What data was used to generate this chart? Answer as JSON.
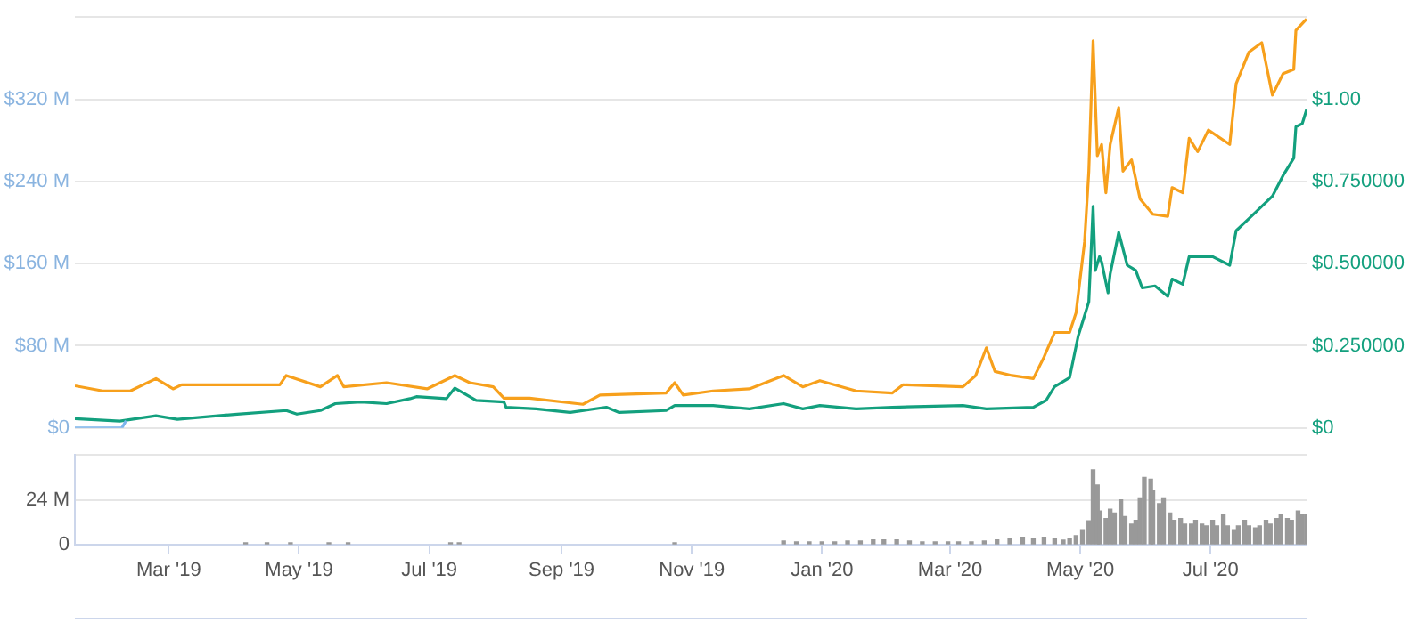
{
  "chart_data": [
    {
      "type": "line",
      "xlim": [
        "2019-01-16",
        "2020-08-15"
      ],
      "ylim": [
        0,
        400
      ],
      "yticks": [
        {
          "value": 0,
          "label": "$0"
        },
        {
          "value": 80,
          "label": "$80 M"
        },
        {
          "value": 160,
          "label": "$160 M"
        },
        {
          "value": 240,
          "label": "$240 M"
        },
        {
          "value": 320,
          "label": "$320 M"
        },
        {
          "value": 400,
          "label": null
        }
      ],
      "y2lim": [
        0,
        1.25
      ],
      "y2ticks": [
        {
          "value": 0,
          "label": "$0"
        },
        {
          "value": 0.25,
          "label": "$0.250000"
        },
        {
          "value": 0.5,
          "label": "$0.500000"
        },
        {
          "value": 0.75,
          "label": "$0.750000"
        },
        {
          "value": 1,
          "label": "$1.00"
        },
        {
          "value": 1.25,
          "label": null
        }
      ],
      "tick_labels": "y",
      "grid": "y",
      "marker": "none",
      "line_style": "solid",
      "series": [
        {
          "color": "#7cb5ec",
          "x": [
            "2019-01-16",
            "2019-02-07",
            "2019-02-09"
          ],
          "values": [
            0,
            0,
            7
          ]
        },
        {
          "color": "#f7a01c",
          "x": [
            "2019-01-16",
            "2019-01-29",
            "2019-02-11",
            "2019-02-23",
            "2019-03-03",
            "2019-03-07",
            "2019-04-22",
            "2019-04-25",
            "2019-05-11",
            "2019-05-19",
            "2019-05-22",
            "2019-06-11",
            "2019-06-30",
            "2019-07-13",
            "2019-07-20",
            "2019-07-31",
            "2019-08-05",
            "2019-08-17",
            "2019-09-11",
            "2019-09-19",
            "2019-10-20",
            "2019-10-24",
            "2019-10-28",
            "2019-11-11",
            "2019-11-28",
            "2019-12-14",
            "2019-12-23",
            "2019-12-31",
            "2020-01-17",
            "2020-02-03",
            "2020-02-08",
            "2020-03-07",
            "2020-03-13",
            "2020-03-18",
            "2020-03-22",
            "2020-03-30",
            "2020-04-09",
            "2020-04-14",
            "2020-04-19",
            "2020-04-26",
            "2020-04-29",
            "2020-05-03",
            "2020-05-05",
            "2020-05-07",
            "2020-05-09",
            "2020-05-11",
            "2020-05-13",
            "2020-05-15",
            "2020-05-19",
            "2020-05-21",
            "2020-05-25",
            "2020-05-29",
            "2020-06-04",
            "2020-06-11",
            "2020-06-13",
            "2020-06-18",
            "2020-06-21",
            "2020-06-25",
            "2020-06-30",
            "2020-07-10",
            "2020-07-13",
            "2020-07-19",
            "2020-07-25",
            "2020-07-30",
            "2020-08-04",
            "2020-08-09",
            "2020-08-10",
            "2020-08-14",
            "2020-08-15"
          ],
          "values": [
            41,
            36,
            36,
            48,
            38,
            42,
            42,
            51,
            40,
            51,
            40,
            44,
            38,
            51,
            44,
            40,
            29,
            29,
            23,
            32,
            34,
            44,
            32,
            36,
            38,
            51,
            40,
            46,
            36,
            34,
            42,
            40,
            51,
            78,
            55,
            51,
            48,
            69,
            93,
            93,
            112,
            181,
            250,
            377,
            265,
            276,
            229,
            276,
            312,
            250,
            261,
            223,
            208,
            206,
            234,
            229,
            282,
            269,
            290,
            276,
            335,
            366,
            375,
            324,
            345,
            349,
            387,
            396,
            398
          ]
        },
        {
          "color": "#13a07e",
          "axis": "y2",
          "x": [
            "2019-01-16",
            "2019-02-06",
            "2019-02-23",
            "2019-03-05",
            "2019-04-02",
            "2019-04-25",
            "2019-04-30",
            "2019-05-11",
            "2019-05-18",
            "2019-05-30",
            "2019-06-11",
            "2019-06-22",
            "2019-06-25",
            "2019-07-09",
            "2019-07-13",
            "2019-07-23",
            "2019-08-05",
            "2019-08-06",
            "2019-08-20",
            "2019-09-05",
            "2019-09-22",
            "2019-09-28",
            "2019-10-20",
            "2019-10-24",
            "2019-11-11",
            "2019-11-28",
            "2019-12-14",
            "2019-12-23",
            "2019-12-31",
            "2020-01-17",
            "2020-02-03",
            "2020-03-07",
            "2020-03-18",
            "2020-04-09",
            "2020-04-15",
            "2020-04-19",
            "2020-04-26",
            "2020-04-30",
            "2020-05-05",
            "2020-05-07",
            "2020-05-08",
            "2020-05-10",
            "2020-05-11",
            "2020-05-14",
            "2020-05-15",
            "2020-05-19",
            "2020-05-23",
            "2020-05-27",
            "2020-05-30",
            "2020-06-05",
            "2020-06-11",
            "2020-06-13",
            "2020-06-18",
            "2020-06-21",
            "2020-06-26",
            "2020-07-02",
            "2020-07-10",
            "2020-07-13",
            "2020-07-19",
            "2020-07-25",
            "2020-07-30",
            "2020-08-04",
            "2020-08-09",
            "2020-08-10",
            "2020-08-13",
            "2020-08-15"
          ],
          "values": [
            0.028,
            0.021,
            0.037,
            0.026,
            0.042,
            0.053,
            0.042,
            0.053,
            0.074,
            0.079,
            0.074,
            0.089,
            0.095,
            0.089,
            0.121,
            0.084,
            0.079,
            0.063,
            0.058,
            0.047,
            0.063,
            0.047,
            0.053,
            0.068,
            0.068,
            0.058,
            0.074,
            0.058,
            0.068,
            0.058,
            0.063,
            0.068,
            0.058,
            0.063,
            0.084,
            0.126,
            0.153,
            0.279,
            0.384,
            0.674,
            0.479,
            0.521,
            0.505,
            0.411,
            0.468,
            0.595,
            0.495,
            0.479,
            0.426,
            0.432,
            0.4,
            0.453,
            0.437,
            0.521,
            0.521,
            0.521,
            0.495,
            0.6,
            0.637,
            0.674,
            0.705,
            0.768,
            0.821,
            0.916,
            0.926,
            0.968
          ]
        }
      ]
    },
    {
      "type": "bar",
      "color": "#999999",
      "xlim": [
        "2019-01-16",
        "2020-08-15"
      ],
      "xticks": [
        {
          "value": "2019-03-01",
          "label": "Mar '19"
        },
        {
          "value": "2019-05-01",
          "label": "May '19"
        },
        {
          "value": "2019-07-01",
          "label": "Jul '19"
        },
        {
          "value": "2019-09-01",
          "label": "Sep '19"
        },
        {
          "value": "2019-11-01",
          "label": "Nov '19"
        },
        {
          "value": "2020-01-01",
          "label": "Jan '20"
        },
        {
          "value": "2020-03-01",
          "label": "Mar '20"
        },
        {
          "value": "2020-05-01",
          "label": "May '20"
        },
        {
          "value": "2020-07-01",
          "label": "Jul '20"
        }
      ],
      "ylim": [
        0,
        48
      ],
      "yticks": [
        0,
        {
          "value": 24,
          "label": "24 M"
        },
        {
          "value": 48,
          "label": null
        }
      ],
      "grid": "y",
      "x": [
        "2019-04-06",
        "2019-04-16",
        "2019-04-27",
        "2019-05-15",
        "2019-05-24",
        "2019-07-11",
        "2019-07-15",
        "2019-10-24",
        "2019-12-14",
        "2019-12-20",
        "2019-12-26",
        "2020-01-01",
        "2020-01-07",
        "2020-01-13",
        "2020-01-19",
        "2020-01-25",
        "2020-01-30",
        "2020-02-05",
        "2020-02-11",
        "2020-02-17",
        "2020-02-23",
        "2020-02-29",
        "2020-03-05",
        "2020-03-11",
        "2020-03-17",
        "2020-03-23",
        "2020-03-29",
        "2020-04-04",
        "2020-04-09",
        "2020-04-14",
        "2020-04-19",
        "2020-04-23",
        "2020-04-26",
        "2020-04-29",
        "2020-05-02",
        "2020-05-05",
        "2020-05-07",
        "2020-05-09",
        "2020-05-10",
        "2020-05-13",
        "2020-05-15",
        "2020-05-17",
        "2020-05-20",
        "2020-05-22",
        "2020-05-25",
        "2020-05-27",
        "2020-05-29",
        "2020-05-31",
        "2020-06-03",
        "2020-06-04",
        "2020-06-07",
        "2020-06-09",
        "2020-06-12",
        "2020-06-14",
        "2020-06-17",
        "2020-06-19",
        "2020-06-22",
        "2020-06-24",
        "2020-06-27",
        "2020-06-29",
        "2020-07-02",
        "2020-07-04",
        "2020-07-07",
        "2020-07-09",
        "2020-07-12",
        "2020-07-14",
        "2020-07-17",
        "2020-07-19",
        "2020-07-22",
        "2020-07-24",
        "2020-07-27",
        "2020-07-29",
        "2020-08-01",
        "2020-08-03",
        "2020-08-06",
        "2020-08-08",
        "2020-08-11",
        "2020-08-13",
        "2020-08-15"
      ],
      "values": [
        1,
        1,
        1,
        1,
        1,
        1,
        1,
        1,
        2,
        1.5,
        1.5,
        1.5,
        1.5,
        2,
        2,
        2.5,
        2.5,
        2.5,
        2,
        1.5,
        1.5,
        1.5,
        1.5,
        1.5,
        2,
        2.5,
        3,
        4,
        3,
        4,
        3,
        2.4,
        3.2,
        4.8,
        8,
        12.8,
        40,
        32,
        18,
        14,
        19,
        17,
        24,
        15,
        11,
        13,
        25,
        36,
        35,
        29,
        22,
        25,
        17,
        13,
        14,
        11,
        11,
        13,
        11,
        10,
        13,
        10,
        16,
        10,
        8,
        10,
        13,
        10,
        9,
        10,
        13,
        11,
        14,
        16,
        14,
        13,
        18,
        16,
        16
      ]
    }
  ]
}
